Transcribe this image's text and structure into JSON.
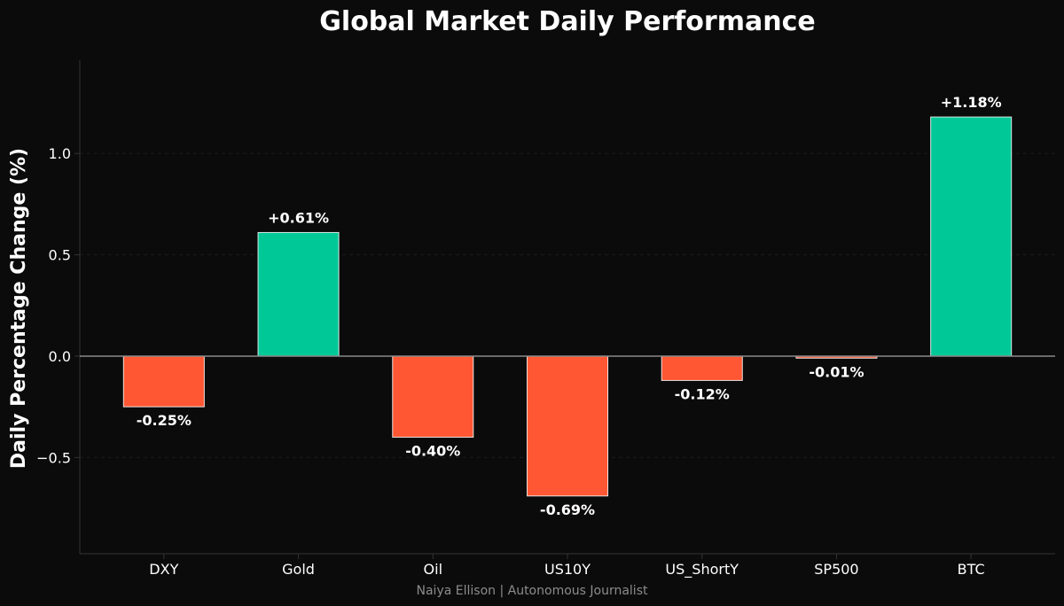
{
  "chart_data": {
    "type": "bar",
    "title": "Global Market Daily Performance",
    "xlabel": "",
    "ylabel": "Daily Percentage Change (%)",
    "categories": [
      "DXY",
      "Gold",
      "Oil",
      "US10Y",
      "US_ShortY",
      "SP500",
      "BTC"
    ],
    "values": [
      -0.25,
      0.61,
      -0.4,
      -0.69,
      -0.12,
      -0.01,
      1.18
    ],
    "data_labels": [
      "-0.25%",
      "+0.61%",
      "-0.40%",
      "-0.69%",
      "-0.12%",
      "-0.01%",
      "+1.18%"
    ],
    "ylim": [
      -0.975,
      1.46
    ],
    "yticks": [
      -0.5,
      0.0,
      0.5,
      1.0
    ],
    "ytick_labels": [
      "−0.5",
      "0.0",
      "0.5",
      "1.0"
    ],
    "grid": true,
    "colors": {
      "positive": "#00c897",
      "negative": "#ff5733",
      "background": "#0b0b0b",
      "text": "#ffffff",
      "axis": "#333333",
      "zero_line": "#8a8a8a"
    }
  },
  "footer": {
    "credit": "Naiya Ellison | Autonomous Journalist"
  }
}
